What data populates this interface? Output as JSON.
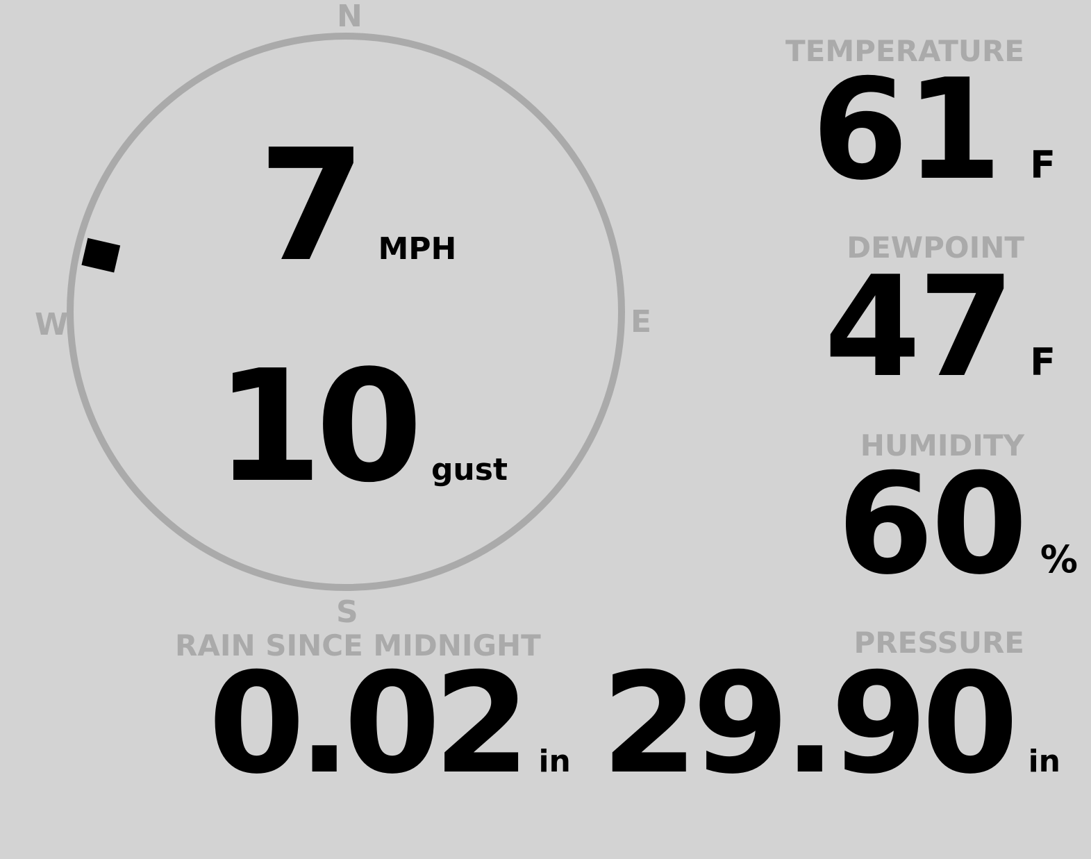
{
  "colors": {
    "background": "#d3d3d3",
    "muted": "#aaaaaa",
    "value": "#000000"
  },
  "wind": {
    "compass": {
      "n": "N",
      "e": "E",
      "s": "S",
      "w": "W"
    },
    "direction_degrees": 283,
    "speed": "7",
    "speed_unit": "MPH",
    "gust": "10",
    "gust_unit": "gust"
  },
  "temperature": {
    "label": "TEMPERATURE",
    "value": "61",
    "unit": "F"
  },
  "dewpoint": {
    "label": "DEWPOINT",
    "value": "47",
    "unit": "F"
  },
  "humidity": {
    "label": "HUMIDITY",
    "value": "60",
    "unit": "%"
  },
  "rain": {
    "label": "RAIN SINCE MIDNIGHT",
    "value": "0.02",
    "unit": "in"
  },
  "pressure": {
    "label": "PRESSURE",
    "value": "29.90",
    "unit": "in"
  }
}
